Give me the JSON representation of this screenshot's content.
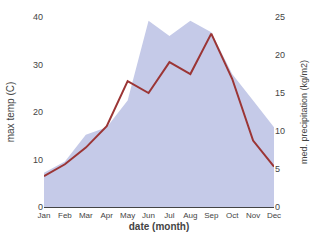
{
  "chart_data": {
    "type": "line",
    "xlabel": "date (month)",
    "ylabel": "max temp (C)",
    "y2label": "med. precipitation (kg/m2)",
    "categories": [
      "Jan",
      "Feb",
      "Mar",
      "Apr",
      "May",
      "Jun",
      "Jul",
      "Aug",
      "Sep",
      "Oct",
      "Nov",
      "Dec"
    ],
    "series": [
      {
        "type": "area",
        "color": "#c5cae8",
        "axis": "y2",
        "values": [
          4.5,
          6.0,
          9.5,
          10.5,
          14.0,
          24.5,
          22.5,
          24.5,
          23.0,
          17.5,
          14.0,
          10.5
        ]
      },
      {
        "type": "line",
        "color": "#9b3535",
        "values": [
          6.5,
          9.0,
          12.5,
          17.0,
          26.5,
          24.0,
          30.5,
          28.0,
          36.5,
          27.0,
          14.0,
          8.5
        ]
      }
    ],
    "ylim": [
      0,
      40
    ],
    "yticks": [
      0,
      10,
      20,
      30,
      40
    ],
    "y2lim": [
      0,
      25
    ],
    "y2ticks": [
      0,
      5,
      10,
      15,
      20,
      25
    ],
    "grid": false
  }
}
